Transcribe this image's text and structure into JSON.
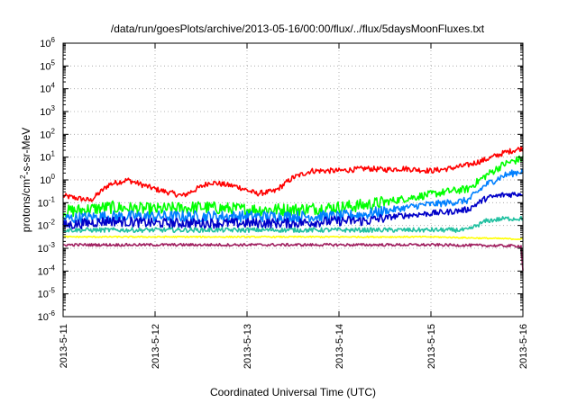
{
  "chart_data": {
    "type": "line",
    "title": "/data/run/goesPlots/archive/2013-05-16/00:00/flux/../flux/5daysMoonFluxes.txt",
    "xlabel": "Coordinated Universal Time (UTC)",
    "ylabel_base": "protons/cm",
    "ylabel_sup": "2",
    "ylabel_rest": "-s-sr-MeV",
    "y_scale": "log",
    "ylim_exp": [
      -6,
      6
    ],
    "y_tick_exponents": [
      6,
      5,
      4,
      3,
      2,
      1,
      0,
      -1,
      -2,
      -3,
      -4,
      -5,
      -6
    ],
    "y_tick_base": "10",
    "xlim": [
      "2013-05-11",
      "2013-05-16"
    ],
    "x_ticks": [
      "2013-5-11",
      "2013-5-12",
      "2013-5-13",
      "2013-5-14",
      "2013-5-15",
      "2013-5-16"
    ],
    "grid": true,
    "legend": "none",
    "series": [
      {
        "color": "#ff0000",
        "x_days": [
          0,
          0.3,
          0.5,
          0.7,
          1.0,
          1.3,
          1.6,
          1.9,
          2.1,
          2.3,
          2.5,
          2.7,
          3.0,
          3.3,
          3.5,
          3.7,
          4.0,
          4.2,
          4.4,
          4.6,
          4.8,
          5.0
        ],
        "log_y": [
          -0.7,
          -0.9,
          -0.2,
          0.0,
          -0.4,
          -0.7,
          -0.1,
          -0.3,
          -0.6,
          -0.5,
          0.1,
          0.4,
          0.4,
          0.5,
          0.45,
          0.5,
          0.4,
          0.5,
          0.65,
          0.9,
          1.2,
          1.4
        ]
      },
      {
        "color": "#00ff00",
        "x_days": [
          0,
          0.5,
          1.0,
          1.5,
          2.0,
          2.5,
          3.0,
          3.3,
          3.6,
          3.9,
          4.2,
          4.4,
          4.6,
          4.8,
          5.0
        ],
        "log_y": [
          -1.4,
          -1.2,
          -1.3,
          -1.2,
          -1.3,
          -1.3,
          -1.2,
          -1.1,
          -0.9,
          -0.7,
          -0.5,
          -0.4,
          0.2,
          0.7,
          0.95
        ]
      },
      {
        "color": "#0080ff",
        "x_days": [
          0,
          0.5,
          1.0,
          1.5,
          2.0,
          2.5,
          3.0,
          3.3,
          3.6,
          3.9,
          4.2,
          4.4,
          4.6,
          4.8,
          5.0
        ],
        "log_y": [
          -1.7,
          -1.6,
          -1.6,
          -1.6,
          -1.6,
          -1.6,
          -1.6,
          -1.5,
          -1.3,
          -1.1,
          -1.0,
          -0.9,
          -0.2,
          0.2,
          0.4
        ]
      },
      {
        "color": "#0000c8",
        "x_days": [
          0,
          0.5,
          1.0,
          1.5,
          2.0,
          2.5,
          3.0,
          3.3,
          3.6,
          3.9,
          4.2,
          4.4,
          4.6,
          4.8,
          5.0
        ],
        "log_y": [
          -2.0,
          -1.8,
          -1.9,
          -1.9,
          -1.9,
          -1.9,
          -1.8,
          -1.8,
          -1.6,
          -1.5,
          -1.4,
          -1.3,
          -0.8,
          -0.65,
          -0.6
        ]
      },
      {
        "color": "#20c0a0",
        "x_days": [
          0,
          0.5,
          1.0,
          1.5,
          2.0,
          2.5,
          3.0,
          3.5,
          4.0,
          4.4,
          4.6,
          4.8,
          5.0
        ],
        "log_y": [
          -2.2,
          -2.2,
          -2.2,
          -2.2,
          -2.2,
          -2.2,
          -2.2,
          -2.2,
          -2.2,
          -2.2,
          -1.8,
          -1.7,
          -1.7
        ]
      },
      {
        "color": "#ffff00",
        "x_days": [
          0,
          1.0,
          2.0,
          3.0,
          4.0,
          5.0
        ],
        "log_y": [
          -2.5,
          -2.5,
          -2.5,
          -2.5,
          -2.5,
          -2.6
        ]
      },
      {
        "color": "#a02060",
        "x_days": [
          0,
          1.0,
          2.0,
          3.0,
          4.0,
          4.98,
          5.0
        ],
        "log_y": [
          -2.85,
          -2.85,
          -2.85,
          -2.85,
          -2.85,
          -2.9,
          -4.0
        ]
      }
    ]
  }
}
